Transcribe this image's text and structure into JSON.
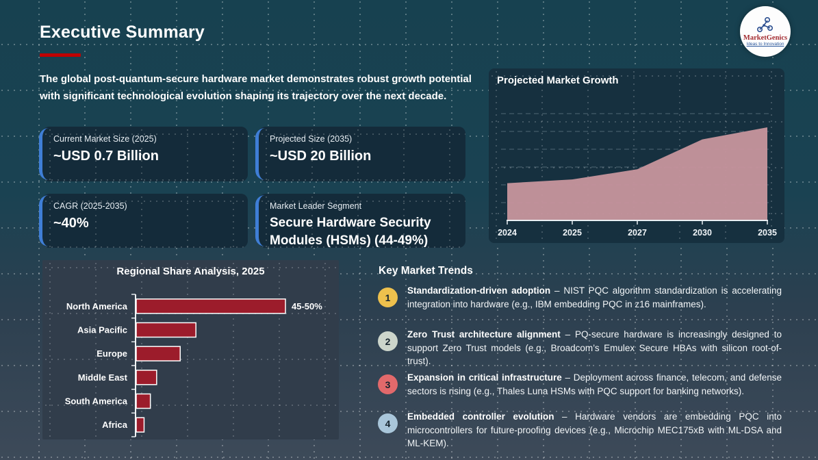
{
  "page": {
    "title": "Executive Summary",
    "intro": "The global post-quantum-secure hardware market demonstrates robust growth potential with significant technological evolution shaping its trajectory over the next decade."
  },
  "logo": {
    "name": "MarketGenics",
    "tagline": "Ideas to Innovation"
  },
  "colors": {
    "accent_red": "#c00000",
    "accent_blue": "#3f7ed6",
    "area_fill": "#c6949c",
    "bar_fill": "#9c1c2b",
    "card_bg": "#142b3a",
    "chart_card_bg": "#16303f",
    "bar_panel_bg": "#313d4b"
  },
  "stat_cards": [
    {
      "label": "Current Market Size (2025)",
      "value": "~USD 0.7 Billion"
    },
    {
      "label": "Projected Size (2035)",
      "value": "~USD 20 Billion"
    },
    {
      "label": "CAGR (2025-2035)",
      "value": "~40%"
    },
    {
      "label": "Market Leader Segment",
      "value": "Secure Hardware Security Modules (HSMs) (44-49%)"
    }
  ],
  "chart_data": [
    {
      "type": "area",
      "title": "Projected Market Growth",
      "x": [
        "2024",
        "2025",
        "2027",
        "2030",
        "2035"
      ],
      "values": [
        40,
        44,
        55,
        87,
        100
      ],
      "xlabel": "",
      "ylabel": "",
      "ylim": [
        0,
        100
      ],
      "note": "illustrative curve; values are % of 2035 peak (~USD 20B)",
      "grid": "dashed horizontal gridlines, no y-axis labels",
      "legend": "none",
      "area_color": "#c6949c"
    },
    {
      "type": "bar",
      "title": "Regional Share Analysis, 2025",
      "orientation": "horizontal",
      "categories": [
        "North America",
        "Asia Pacific",
        "Europe",
        "Middle East",
        "South America",
        "Africa"
      ],
      "values": [
        47.5,
        19,
        14,
        6.5,
        4.5,
        2.5
      ],
      "unit": "% market share (estimated from bar lengths)",
      "data_labels": [
        "45-50%",
        "",
        "",
        "",
        "",
        ""
      ],
      "xlim": [
        0,
        55
      ],
      "grid": "off",
      "legend": "none",
      "bar_color": "#9c1c2b"
    }
  ],
  "trends": {
    "heading": "Key Market Trends",
    "items": [
      {
        "num": "1",
        "badge_color": "#eec14d",
        "bold": "Standardization-driven adoption",
        "rest": " – NIST PQC algorithm standardization is accelerating integration into hardware (e.g., IBM embedding PQC in z16 mainframes)."
      },
      {
        "num": "2",
        "badge_color": "#ccd5cb",
        "bold": "Zero Trust architecture alignment",
        "rest": " – PQ-secure hardware is increasingly designed to support Zero Trust models (e.g., Broadcom’s Emulex Secure HBAs with silicon root-of-trust)."
      },
      {
        "num": "3",
        "badge_color": "#e2696b",
        "bold": "Expansion in critical infrastructure",
        "rest": " – Deployment across finance, telecom, and defense sectors is rising (e.g., Thales Luna HSMs with PQC support for banking networks)."
      },
      {
        "num": "4",
        "badge_color": "#a9c6da",
        "bold": "Embedded controller evolution",
        "rest": " – Hardware vendors are embedding PQC into microcontrollers for future-proofing devices (e.g., Microchip MEC175xB with ML-DSA and ML-KEM)."
      }
    ]
  }
}
